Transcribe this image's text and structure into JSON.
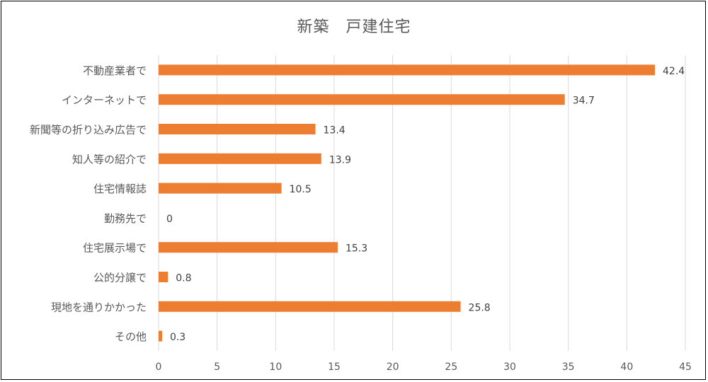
{
  "chart_data": {
    "type": "bar",
    "orientation": "horizontal",
    "title": "新築　戸建住宅",
    "categories": [
      "不動産業者で",
      "インターネットで",
      "新聞等の折り込み広告で",
      "知人等の紹介で",
      "住宅情報誌",
      "勤務先で",
      "住宅展示場で",
      "公的分譲で",
      "現地を通りかかった",
      "その他"
    ],
    "values": [
      42.4,
      34.7,
      13.4,
      13.9,
      10.5,
      0,
      15.3,
      0.8,
      25.8,
      0.3
    ],
    "value_labels": [
      "42.4",
      "34.7",
      "13.4",
      "13.9",
      "10.5",
      "0",
      "15.3",
      "0.8",
      "25.8",
      "0.3"
    ],
    "xlim": [
      0,
      45
    ],
    "xticks": [
      0,
      5,
      10,
      15,
      20,
      25,
      30,
      35,
      40,
      45
    ],
    "xlabel": "",
    "ylabel": "",
    "grid": "vertical",
    "legend": "none",
    "bar_color": "#ED7D31",
    "grid_color": "#D9D9D9"
  }
}
